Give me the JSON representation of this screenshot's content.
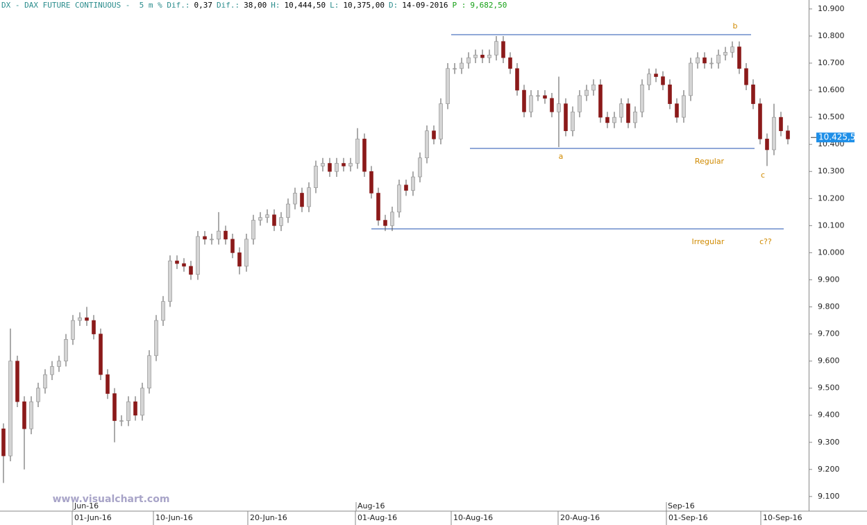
{
  "header": {
    "items": [
      {
        "text": "DX - DAX FUTURE CONTINUOUS -  5 m % Dif.:",
        "color": "#2a8c8c"
      },
      {
        "text": "0,37",
        "color": "#000000"
      },
      {
        "text": "Dif.:",
        "color": "#2a8c8c"
      },
      {
        "text": "38,00",
        "color": "#000000"
      },
      {
        "text": "H:",
        "color": "#2a8c8c"
      },
      {
        "text": "10,444,50",
        "color": "#000000"
      },
      {
        "text": "L:",
        "color": "#2a8c8c"
      },
      {
        "text": "10,375,00",
        "color": "#000000"
      },
      {
        "text": "D:",
        "color": "#2a8c8c"
      },
      {
        "text": "14-09-2016",
        "color": "#000000"
      },
      {
        "text": "P :",
        "color": "#14a014"
      },
      {
        "text": "9,682,50",
        "color": "#14a014"
      }
    ]
  },
  "watermark": "www.visualchart.com",
  "chart_data": {
    "type": "candlestick",
    "up_color": "#d4d4d4",
    "down_color": "#8b1a1a",
    "wick_color": "#555555",
    "open": [
      9350,
      9250,
      9600,
      9450,
      9350,
      9450,
      9500,
      9550,
      9580,
      9600,
      9680,
      9750,
      9760,
      9750,
      9700,
      9550,
      9480,
      9380,
      9380,
      9450,
      9400,
      9500,
      9620,
      9750,
      9820,
      9970,
      9960,
      9950,
      9920,
      10060,
      10050,
      10050,
      10080,
      10050,
      10000,
      9950,
      10050,
      10120,
      10130,
      10140,
      10100,
      10130,
      10180,
      10220,
      10170,
      10240,
      10320,
      10330,
      10300,
      10330,
      10320,
      10330,
      10420,
      10300,
      10220,
      10120,
      10100,
      10150,
      10250,
      10230,
      10280,
      10350,
      10450,
      10420,
      10550,
      10680,
      10680,
      10700,
      10720,
      10730,
      10720,
      10730,
      10780,
      10720,
      10680,
      10600,
      10520,
      10580,
      10580,
      10570,
      10520,
      10550,
      10450,
      10520,
      10580,
      10600,
      10620,
      10500,
      10480,
      10500,
      10550,
      10480,
      10520,
      10620,
      10660,
      10650,
      10620,
      10550,
      10500,
      10580,
      10700,
      10720,
      10700,
      10700,
      10730,
      10740,
      10760,
      10680,
      10620,
      10550,
      10420,
      10380,
      10500,
      10450
    ],
    "high": [
      9370,
      9720,
      9620,
      9470,
      9470,
      9520,
      9570,
      9600,
      9620,
      9700,
      9770,
      9780,
      9800,
      9770,
      9720,
      9570,
      9500,
      9400,
      9470,
      9470,
      9520,
      9640,
      9770,
      9840,
      9990,
      9990,
      9980,
      9970,
      10080,
      10080,
      10070,
      10150,
      10100,
      10070,
      10020,
      10070,
      10140,
      10150,
      10160,
      10160,
      10150,
      10200,
      10240,
      10240,
      10260,
      10340,
      10350,
      10350,
      10350,
      10350,
      10350,
      10460,
      10440,
      10320,
      10240,
      10140,
      10170,
      10270,
      10270,
      10300,
      10370,
      10470,
      10470,
      10570,
      10700,
      10700,
      10720,
      10740,
      10750,
      10750,
      10750,
      10800,
      10800,
      10740,
      10700,
      10620,
      10600,
      10600,
      10600,
      10590,
      10650,
      10570,
      10540,
      10600,
      10620,
      10640,
      10640,
      10520,
      10520,
      10570,
      10570,
      10540,
      10640,
      10680,
      10680,
      10670,
      10640,
      10570,
      10600,
      10720,
      10740,
      10740,
      10720,
      10750,
      10760,
      10780,
      10780,
      10700,
      10640,
      10570,
      10440,
      10550,
      10520,
      10470
    ],
    "low": [
      9150,
      9230,
      9430,
      9200,
      9330,
      9430,
      9480,
      9530,
      9560,
      9580,
      9660,
      9730,
      9730,
      9680,
      9530,
      9460,
      9300,
      9360,
      9360,
      9380,
      9380,
      9480,
      9600,
      9730,
      9800,
      9940,
      9930,
      9900,
      9900,
      10030,
      10030,
      10030,
      10030,
      9980,
      9920,
      9930,
      10030,
      10100,
      10110,
      10080,
      10080,
      10110,
      10160,
      10150,
      10150,
      10220,
      10300,
      10280,
      10280,
      10300,
      10300,
      10310,
      10280,
      10200,
      10100,
      10080,
      10080,
      10130,
      10210,
      10210,
      10260,
      10330,
      10400,
      10400,
      10530,
      10660,
      10660,
      10680,
      10700,
      10700,
      10700,
      10710,
      10700,
      10660,
      10580,
      10500,
      10500,
      10560,
      10550,
      10500,
      10390,
      10430,
      10430,
      10500,
      10560,
      10580,
      10480,
      10460,
      10460,
      10480,
      10460,
      10460,
      10500,
      10600,
      10630,
      10600,
      10530,
      10480,
      10480,
      10560,
      10680,
      10680,
      10680,
      10680,
      10710,
      10720,
      10660,
      10600,
      10530,
      10400,
      10320,
      10360,
      10430,
      10400
    ],
    "close": [
      9250,
      9600,
      9450,
      9350,
      9450,
      9500,
      9550,
      9580,
      9600,
      9680,
      9750,
      9760,
      9750,
      9700,
      9550,
      9480,
      9380,
      9380,
      9450,
      9400,
      9500,
      9620,
      9750,
      9820,
      9970,
      9960,
      9950,
      9920,
      10060,
      10050,
      10050,
      10080,
      10050,
      10000,
      9950,
      10050,
      10120,
      10130,
      10140,
      10100,
      10130,
      10180,
      10220,
      10170,
      10240,
      10320,
      10330,
      10300,
      10330,
      10320,
      10330,
      10420,
      10300,
      10220,
      10120,
      10100,
      10150,
      10250,
      10230,
      10280,
      10350,
      10450,
      10420,
      10550,
      10680,
      10680,
      10700,
      10720,
      10730,
      10720,
      10730,
      10780,
      10720,
      10680,
      10600,
      10520,
      10580,
      10580,
      10570,
      10520,
      10550,
      10450,
      10520,
      10580,
      10600,
      10620,
      10500,
      10480,
      10500,
      10550,
      10480,
      10520,
      10620,
      10660,
      10650,
      10620,
      10550,
      10500,
      10580,
      10700,
      10720,
      10700,
      10700,
      10730,
      10740,
      10760,
      10680,
      10620,
      10550,
      10420,
      10380,
      10500,
      10450,
      10420
    ],
    "xlim": [
      0,
      116.5
    ],
    "xticks": [
      {
        "value": 10.4,
        "label": "01-Jun-16"
      },
      {
        "value": 22.1,
        "label": "10-Jun-16"
      },
      {
        "value": 35.7,
        "label": "20-Jun-16"
      },
      {
        "value": 51.2,
        "label": "01-Aug-16"
      },
      {
        "value": 65,
        "label": "10-Aug-16"
      },
      {
        "value": 80.4,
        "label": "20-Aug-16"
      },
      {
        "value": 96,
        "label": "01-Sep-16"
      },
      {
        "value": 109.6,
        "label": "10-Sep-16"
      }
    ],
    "xticks_upper": [
      {
        "value": 10.5,
        "label": "Jun-16"
      },
      {
        "value": 51.3,
        "label": "Aug-16"
      },
      {
        "value": 96,
        "label": "Sep-16"
      }
    ],
    "ylim": [
      9046,
      10933
    ],
    "yticks": [
      {
        "value": 9100,
        "label": "9.100"
      },
      {
        "value": 9200,
        "label": "9.200"
      },
      {
        "value": 9300,
        "label": "9.300"
      },
      {
        "value": 9400,
        "label": "9.400"
      },
      {
        "value": 9500,
        "label": "9.500"
      },
      {
        "value": 9600,
        "label": "9.600"
      },
      {
        "value": 9700,
        "label": "9.700"
      },
      {
        "value": 9800,
        "label": "9.800"
      },
      {
        "value": 9900,
        "label": "9.900"
      },
      {
        "value": 10000,
        "label": "10.000"
      },
      {
        "value": 10100,
        "label": "10.100"
      },
      {
        "value": 10200,
        "label": "10.200"
      },
      {
        "value": 10300,
        "label": "10.300"
      },
      {
        "value": 10400,
        "label": "10.400"
      },
      {
        "value": 10500,
        "label": "10.500"
      },
      {
        "value": 10600,
        "label": "10.600"
      },
      {
        "value": 10700,
        "label": "10.700"
      },
      {
        "value": 10800,
        "label": "10.800"
      },
      {
        "value": 10900,
        "label": "10.900"
      }
    ],
    "last_price": {
      "value": 10425.5,
      "label": "10.425,5"
    },
    "last_price_color": "#1e8fe8",
    "levels": [
      {
        "value": 10805,
        "x": [
          65,
          108.2
        ]
      },
      {
        "value": 10385,
        "x": [
          67.7,
          108.7
        ]
      },
      {
        "value": 10088,
        "x": [
          53.5,
          112.9
        ]
      }
    ],
    "level_color": "#2050b0",
    "annotations": [
      "b",
      "a",
      "Regular",
      "c",
      "Irregular",
      "c??"
    ],
    "annotation_color": "#d08a00"
  }
}
